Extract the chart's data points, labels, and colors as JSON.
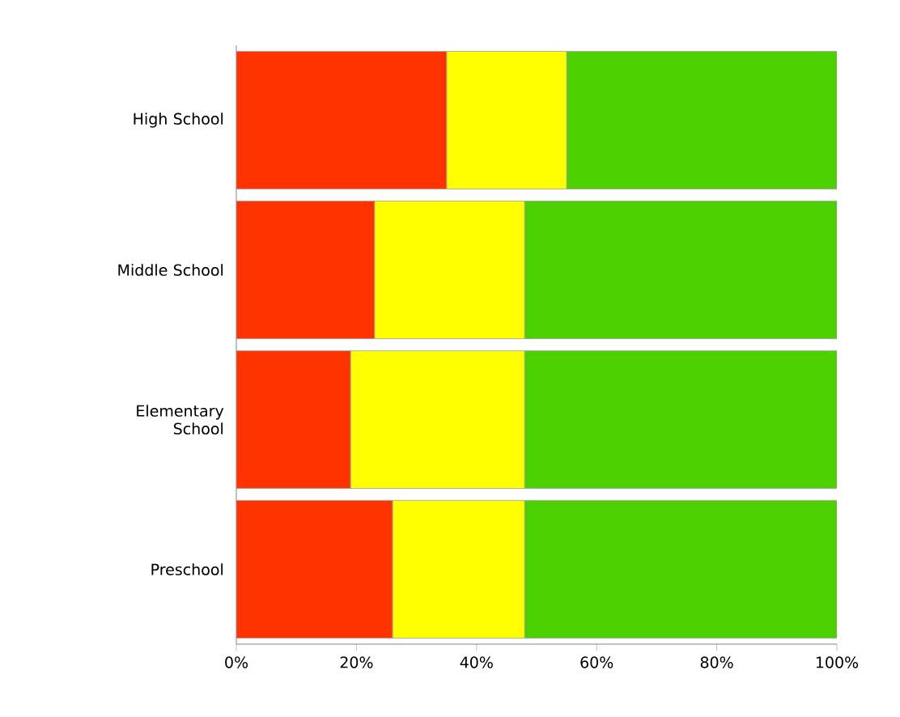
{
  "chart_data": {
    "type": "bar",
    "orientation": "horizontal",
    "stacked": true,
    "categories": [
      "High School",
      "Middle School",
      "Elementary School",
      "Preschool"
    ],
    "series": [
      {
        "color": "#ff3300",
        "values": [
          35,
          23,
          19,
          26
        ]
      },
      {
        "color": "#ffff00",
        "values": [
          20,
          25,
          29,
          22
        ]
      },
      {
        "color": "#4cd000",
        "values": [
          45,
          52,
          52,
          52
        ]
      }
    ],
    "xlim": [
      0,
      100
    ],
    "xticks": [
      {
        "value": 0,
        "label": "0%"
      },
      {
        "value": 20,
        "label": "20%"
      },
      {
        "value": 40,
        "label": "40%"
      },
      {
        "value": 60,
        "label": "60%"
      },
      {
        "value": 80,
        "label": "80%"
      },
      {
        "value": 100,
        "label": "100%"
      }
    ]
  }
}
